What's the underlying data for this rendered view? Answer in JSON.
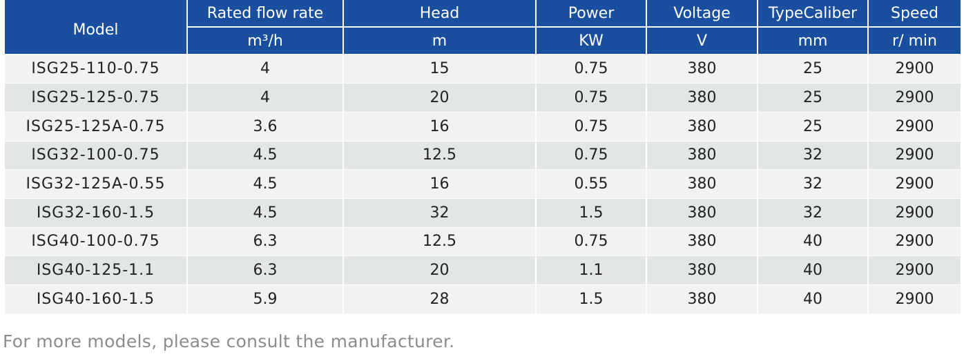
{
  "table": {
    "headers": {
      "model": "Model",
      "flow": "Rated flow rate",
      "head": "Head",
      "power": "Power",
      "voltage": "Voltage",
      "caliber": "TypeCaliber",
      "speed": "Speed"
    },
    "units": {
      "flow": "m³/h",
      "head": "m",
      "power": "KW",
      "voltage": "V",
      "caliber": "mm",
      "speed": "r/ min"
    },
    "rows": [
      [
        "ISG25-110-0.75",
        "4",
        "15",
        "0.75",
        "380",
        "25",
        "2900"
      ],
      [
        "ISG25-125-0.75",
        "4",
        "20",
        "0.75",
        "380",
        "25",
        "2900"
      ],
      [
        "ISG25-125A-0.75",
        "3.6",
        "16",
        "0.75",
        "380",
        "25",
        "2900"
      ],
      [
        "ISG32-100-0.75",
        "4.5",
        "12.5",
        "0.75",
        "380",
        "32",
        "2900"
      ],
      [
        "ISG32-125A-0.55",
        "4.5",
        "16",
        "0.55",
        "380",
        "32",
        "2900"
      ],
      [
        "ISG32-160-1.5",
        "4.5",
        "32",
        "1.5",
        "380",
        "32",
        "2900"
      ],
      [
        "ISG40-100-0.75",
        "6.3",
        "12.5",
        "0.75",
        "380",
        "40",
        "2900"
      ],
      [
        "ISG40-125-1.1",
        "6.3",
        "20",
        "1.1",
        "380",
        "40",
        "2900"
      ],
      [
        "ISG40-160-1.5",
        "5.9",
        "28",
        "1.5",
        "380",
        "40",
        "2900"
      ]
    ]
  },
  "footnote": "For more models, please consult the manufacturer."
}
